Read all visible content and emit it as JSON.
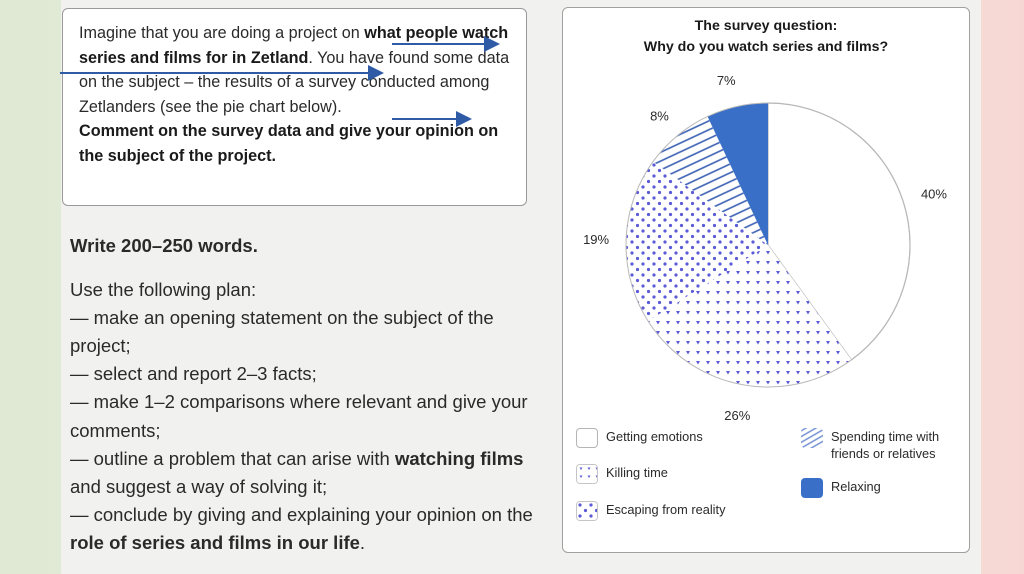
{
  "task": {
    "p1_a": "Imagine that you are doing a project on ",
    "p1_b": "what people watch series and films for in Zetland",
    "p1_c": ". You have found some data on the subject – the results of a survey conducted among Zetlanders (see the pie chart below).",
    "p2": "Comment on the survey data and give your opinion on the subject of the project."
  },
  "plan": {
    "words": "Write 200–250 words.",
    "intro": "Use the following plan:",
    "item1": "— make an opening statement on the subject of the project;",
    "item2": "— select and report 2–3 facts;",
    "item3": "— make 1–2 comparisons where relevant and give your comments;",
    "item4_a": "— outline a problem that can arise with ",
    "item4_b": "watching films",
    "item4_c": " and suggest a way of solving it;",
    "item5_a": "— conclude by giving and explaining your opinion on the ",
    "item5_b": "role of series and films in our life",
    "item5_c": "."
  },
  "chart_data": {
    "type": "pie",
    "title": "The survey question:",
    "subtitle": "Why do you watch series and films?",
    "categories": [
      "Getting emotions",
      "Killing time",
      "Escaping from reality",
      "Spending time with friends or relatives",
      "Relaxing"
    ],
    "values": [
      40,
      26,
      19,
      8,
      7
    ],
    "labels": [
      "40%",
      "26%",
      "19%",
      "8%",
      "7%"
    ],
    "colors": [
      "#ffffff",
      "#5b5bd6",
      "#5b5bd6",
      "#3a5fb4",
      "#3a6fc8"
    ],
    "legend_placement": "bottom"
  },
  "legend": {
    "getting_emotions": "Getting emotions",
    "killing_time": "Killing time",
    "escaping": "Escaping from reality",
    "spending": "Spending time with friends or relatives",
    "relaxing": "Relaxing"
  }
}
